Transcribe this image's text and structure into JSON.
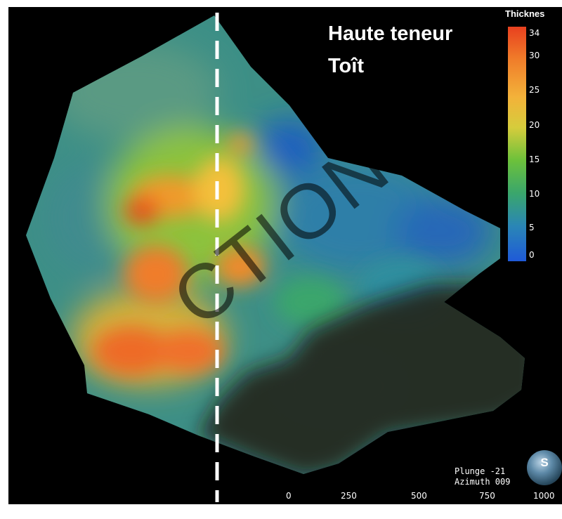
{
  "title_lines": [
    "Haute teneur",
    "Toît"
  ],
  "legend": {
    "header": "Thicknes",
    "ticks": [
      "34",
      "30",
      "25",
      "20",
      "15",
      "10",
      "5",
      "0"
    ],
    "colors": [
      "#e8401f",
      "#f07d2a",
      "#f3b23a",
      "#d6cc3c",
      "#6cc13b",
      "#3aa66c",
      "#2a86b6",
      "#1f5ad8"
    ]
  },
  "view": {
    "plunge": "Plunge -21",
    "azimuth": "Azimuth 009"
  },
  "scale_labels": [
    "0",
    "250",
    "500",
    "750",
    "1000"
  ],
  "compass_letter": "S",
  "watermark": "CTION",
  "icons": [
    "compass-sphere-icon"
  ]
}
